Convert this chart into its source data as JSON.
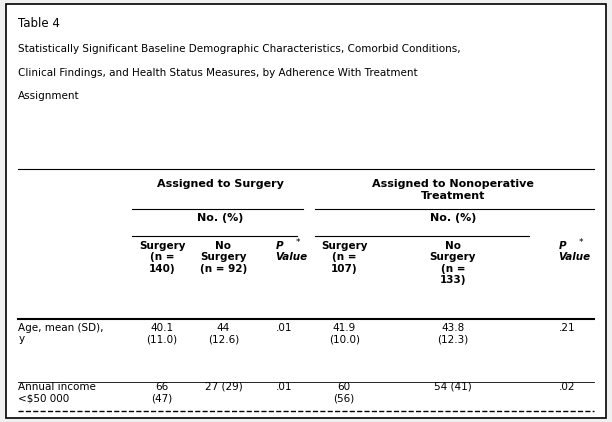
{
  "table_label": "Table 4",
  "title_lines": [
    "Statistically Significant Baseline Demographic Characteristics, Comorbid Conditions,",
    "Clinical Findings, and Health Status Measures, by Adherence With Treatment",
    "Assignment"
  ],
  "group1_header": "Assigned to Surgery",
  "group2_header": "Assigned to Nonoperative\nTreatment",
  "subheader": "No. (%)",
  "col_header_texts": [
    "Surgery\n(n =\n140)",
    "No\nSurgery\n(n = 92)",
    "P\nValue",
    "Surgery\n(n =\n107)",
    "No\nSurgery\n(n =\n133)",
    "P\nValue"
  ],
  "row_labels": [
    "Age, mean (SD),\ny",
    "Annual income\n<$50 000"
  ],
  "data": [
    [
      "40.1\n(11.0)",
      "44\n(12.6)",
      ".01",
      "41.9\n(10.0)",
      "43.8\n(12.3)",
      ".21"
    ],
    [
      "66\n(47)",
      "27 (29)",
      ".01",
      "60\n(56)",
      "54 (41)",
      ".02"
    ]
  ],
  "bg_color": "#f0f0f0",
  "white": "#ffffff",
  "text_color": "#000000",
  "border_color": "#000000",
  "fig_width": 6.12,
  "fig_height": 4.22
}
